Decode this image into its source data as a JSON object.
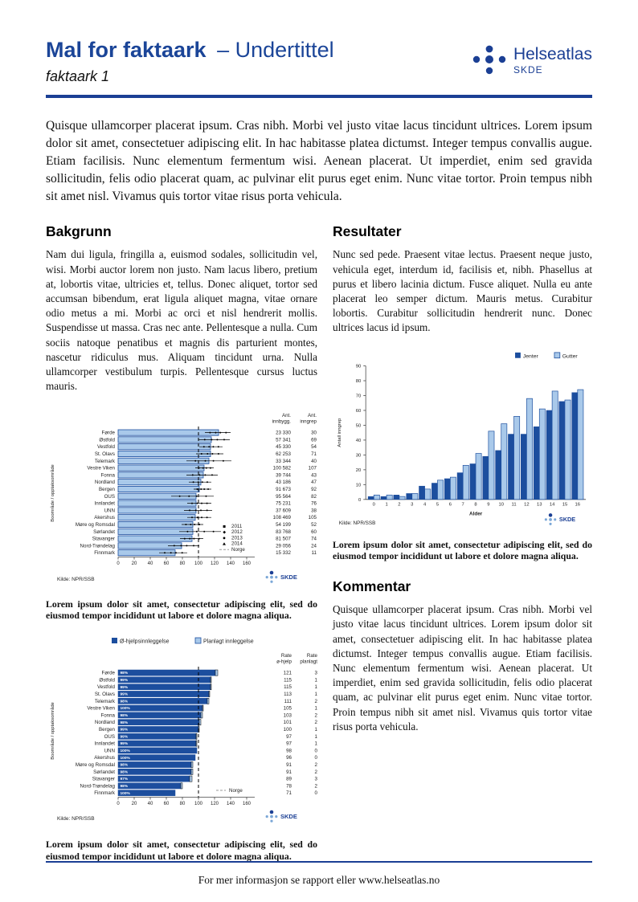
{
  "header": {
    "title": "Mal for faktaark",
    "subtitle": "– Undertittel",
    "doc_label": "faktaark 1",
    "logo": {
      "name": "Helseatlas",
      "sub": "SKDE"
    }
  },
  "intro": "Quisque ullamcorper placerat ipsum. Cras nibh. Morbi vel justo vitae lacus tincidunt ultrices. Lorem ipsum dolor sit amet, consectetuer adipiscing elit. In hac habitasse platea dictumst. Integer tempus convallis augue. Etiam facilisis. Nunc elementum fermentum wisi. Aenean placerat. Ut imperdiet, enim sed gravida sollicitudin, felis odio placerat quam, ac pulvinar elit purus eget enim. Nunc vitae tortor. Proin tempus nibh sit amet nisl. Vivamus quis tortor vitae risus porta vehicula.",
  "sections": {
    "bakgrunn": {
      "heading": "Bakgrunn",
      "body": "Nam dui ligula, fringilla a, euismod sodales, sollicitudin vel, wisi. Morbi auctor lorem non justo. Nam lacus libero, pretium at, lobortis vitae, ultricies et, tellus. Donec aliquet, tortor sed accumsan bibendum, erat ligula aliquet magna, vitae ornare odio metus a mi. Morbi ac orci et nisl hendrerit mollis. Suspendisse ut massa. Cras nec ante. Pellentesque a nulla. Cum sociis natoque penatibus et magnis dis parturient montes, nascetur ridiculus mus. Aliquam tincidunt urna. Nulla ullamcorper vestibulum turpis. Pellentesque cursus luctus mauris."
    },
    "resultater": {
      "heading": "Resultater",
      "body": "Nunc sed pede. Praesent vitae lectus. Praesent neque justo, vehicula eget, interdum id, facilisis et, nibh. Phasellus at purus et libero lacinia dictum. Fusce aliquet. Nulla eu ante placerat leo semper dictum. Mauris metus. Curabitur lobortis. Curabitur sollicitudin hendrerit nunc. Donec ultrices lacus id ipsum."
    },
    "kommentar": {
      "heading": "Kommentar",
      "body": "Quisque ullamcorper placerat ipsum. Cras nibh. Morbi vel justo vitae lacus tincidunt ultrices. Lorem ipsum dolor sit amet, consectetuer adipiscing elit. In hac habitasse platea dictumst. Integer tempus convallis augue. Etiam facilisis. Nunc elementum fermentum wisi. Aenean placerat. Ut imperdiet, enim sed gravida sollicitudin, felis odio placerat quam, ac pulvinar elit purus eget enim. Nunc vitae tortor. Proin tempus nibh sit amet nisl. Vivamus quis tortor vitae risus porta vehicula."
    }
  },
  "captions": {
    "chart1": "Lorem ipsum dolor sit amet, consectetur adipiscing elit, sed do eiusmod tempor incididunt ut labore et dolore magna aliqua.",
    "chart2": "Lorem ipsum dolor sit amet, consectetur adipiscing elit, sed do eiusmod tempor incididunt ut labore et dolore magna aliqua.",
    "chart3": "Lorem ipsum dolor sit amet, consectetur adipiscing elit, sed do eiusmod tempor incididunt ut labore et dolore magna aliqua."
  },
  "footer": {
    "text": "For mer informasjon se rapport eller www.helseatlas.no"
  },
  "colors": {
    "brand_blue": "#1B3F94",
    "bar_dark": "#1C4E9E",
    "bar_light": "#A9C9EA",
    "dot_light": "#7BA7D7"
  },
  "chart_data": [
    {
      "type": "bar",
      "orientation": "horizontal",
      "ylabel": "Boområde / opptaksområde",
      "xlim": [
        0,
        170
      ],
      "xticks": [
        0,
        20,
        40,
        60,
        80,
        100,
        120,
        140,
        160
      ],
      "reference_line": 100,
      "categories": [
        "Førde",
        "Østfold",
        "Vestfold",
        "St. Olavs",
        "Telemark",
        "Vestre Viken",
        "Fonna",
        "Nordland",
        "Bergen",
        "OUS",
        "Innlandet",
        "UNN",
        "Akershus",
        "Møre og Romsdal",
        "Sørlandet",
        "Stavanger",
        "Nord-Trøndelag",
        "Finnmark"
      ],
      "values": [
        125,
        116,
        115,
        115,
        113,
        107,
        106,
        103,
        101,
        97,
        97,
        97,
        96,
        93,
        93,
        92,
        79,
        71
      ],
      "spread": [
        [
          108,
          140
        ],
        [
          100,
          139
        ],
        [
          101,
          130
        ],
        [
          97,
          131
        ],
        [
          85,
          141
        ],
        [
          96,
          119
        ],
        [
          85,
          124
        ],
        [
          88,
          116
        ],
        [
          94,
          116
        ],
        [
          66,
          119
        ],
        [
          86,
          116
        ],
        [
          82,
          117
        ],
        [
          86,
          116
        ],
        [
          79,
          106
        ],
        [
          76,
          128
        ],
        [
          77,
          106
        ],
        [
          62,
          101
        ],
        [
          51,
          86
        ]
      ],
      "columns": [
        [
          "Ant.",
          "innbygg."
        ],
        [
          "Ant.",
          "inngrep"
        ]
      ],
      "ant_innbygg": [
        "23 330",
        "57 341",
        "45 330",
        "62 253",
        "33 344",
        "100 582",
        "39 744",
        "43 186",
        "91 673",
        "95 564",
        "75 231",
        "37 609",
        "108 469",
        "54 199",
        "83 768",
        "81 507",
        "29 056",
        "15 332"
      ],
      "ant_inngrep": [
        "30",
        "69",
        "54",
        "71",
        "40",
        "107",
        "43",
        "47",
        "92",
        "82",
        "76",
        "38",
        "105",
        "52",
        "60",
        "74",
        "24",
        "11"
      ],
      "legend": [
        "2011",
        "2012",
        "2013",
        "2014",
        "Norge"
      ],
      "source": "Kilde: NPR/SSB",
      "logo": "SKDE"
    },
    {
      "type": "bar",
      "orientation": "horizontal",
      "stacked": true,
      "ylabel": "Boområde / opptaksområde",
      "xlim": [
        0,
        170
      ],
      "xticks": [
        0,
        20,
        40,
        60,
        80,
        100,
        120,
        140,
        160
      ],
      "reference_line": 100,
      "legend": [
        "Ø-hjelpsinnleggelse",
        "Planlagt innleggelse"
      ],
      "categories": [
        "Førde",
        "Østfold",
        "Vestfold",
        "St. Olavs",
        "Telemark",
        "Vestre Viken",
        "Fonna",
        "Nordland",
        "Bergen",
        "OUS",
        "Innlandet",
        "UNN",
        "Akershus",
        "Møre og Romsdal",
        "Sørlandet",
        "Stavanger",
        "Nord-Trøndelag",
        "Finnmark"
      ],
      "series": [
        {
          "name": "Ø-hjelpsinnleggelse",
          "values": [
            121,
            115,
            115,
            113,
            111,
            105,
            103,
            101,
            100,
            97,
            97,
            98,
            96,
            91,
            91,
            89,
            78,
            71
          ]
        },
        {
          "name": "Planlagt innleggelse",
          "values": [
            3,
            1,
            1,
            1,
            2,
            1,
            2,
            2,
            1,
            1,
            1,
            0,
            0,
            2,
            2,
            3,
            2,
            0
          ]
        }
      ],
      "bar_labels": [
        "98%",
        "99%",
        "99%",
        "99%",
        "98%",
        "100%",
        "98%",
        "98%",
        "99%",
        "99%",
        "99%",
        "100%",
        "100%",
        "98%",
        "98%",
        "97%",
        "98%",
        "100%"
      ],
      "columns": [
        [
          "Rate",
          "ø-hjelp"
        ],
        [
          "Rate",
          "planlagt"
        ]
      ],
      "rate_ohjelp": [
        "121",
        "115",
        "115",
        "113",
        "111",
        "105",
        "103",
        "101",
        "100",
        "97",
        "97",
        "98",
        "96",
        "91",
        "91",
        "89",
        "78",
        "71"
      ],
      "rate_planlagt": [
        "3",
        "1",
        "1",
        "1",
        "2",
        "1",
        "2",
        "2",
        "1",
        "1",
        "1",
        "0",
        "0",
        "2",
        "2",
        "3",
        "2",
        "0"
      ],
      "norge_label": "Norge",
      "source": "Kilde: NPR/SSB",
      "logo": "SKDE"
    },
    {
      "type": "bar",
      "orientation": "vertical",
      "xlabel": "Alder",
      "ylabel": "Antall inngrep",
      "ylim": [
        0,
        90
      ],
      "yticks": [
        0,
        10,
        20,
        30,
        40,
        50,
        60,
        70,
        80,
        90
      ],
      "categories": [
        "0",
        "1",
        "2",
        "3",
        "4",
        "5",
        "6",
        "7",
        "8",
        "9",
        "10",
        "11",
        "12",
        "13",
        "14",
        "15",
        "16"
      ],
      "series": [
        {
          "name": "Jenter",
          "values": [
            2,
            2,
            3,
            4,
            9,
            11,
            14,
            18,
            24,
            29,
            33,
            44,
            44,
            49,
            60,
            66,
            72
          ]
        },
        {
          "name": "Gutter",
          "values": [
            3,
            3,
            2,
            4,
            7,
            13,
            15,
            23,
            31,
            46,
            51,
            56,
            68,
            61,
            73,
            67,
            74
          ]
        }
      ],
      "legend": [
        "Jenter",
        "Gutter"
      ],
      "source": "Kilde: NPR/SSB",
      "logo": "SKDE"
    }
  ]
}
